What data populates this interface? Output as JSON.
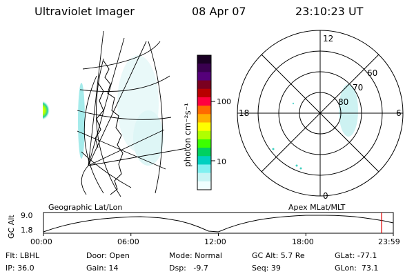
{
  "header": {
    "instrument": "Ultraviolet Imager",
    "date": "08 Apr 07",
    "time": "23:10:23 UT"
  },
  "colorbar": {
    "unit_label": "photon cm⁻²s⁻¹",
    "tick_labels": [
      "100",
      "10"
    ],
    "colors": [
      "#1a0024",
      "#3a0050",
      "#55007a",
      "#7a0020",
      "#b80000",
      "#ff0040",
      "#ff6a00",
      "#ffb000",
      "#ffff00",
      "#b0ff00",
      "#3cff00",
      "#00d060",
      "#00d0c0",
      "#80f0f0",
      "#c8f4f4",
      "#f0ffff"
    ]
  },
  "polar_plot": {
    "mlt_labels": {
      "top": "12",
      "left": "18",
      "right": "6",
      "bottom": "0"
    },
    "lat_labels": [
      "60",
      "70",
      "80"
    ]
  },
  "altitude_panel": {
    "left_label": "Geographic Lat/Lon",
    "right_label": "Apex MLat/MLT",
    "y_axis_label": "GC Alt",
    "y_ticks": [
      "9.0",
      "1.8"
    ],
    "x_ticks": [
      "00:00",
      "06:00",
      "12:00",
      "18:00",
      "23:59"
    ],
    "orbit_alt": [
      1.8,
      3.2,
      4.4,
      5.4,
      6.2,
      6.9,
      7.4,
      7.8,
      8.1,
      8.3,
      8.4,
      8.2,
      7.9,
      7.3,
      6.5,
      5.4,
      3.9,
      2.1,
      1.8,
      3.5,
      4.9,
      6.0,
      6.9,
      7.6,
      8.1,
      8.5,
      8.8,
      9.0,
      9.0,
      9.0,
      8.9,
      8.7,
      8.4,
      7.9,
      7.3,
      6.6,
      5.7
    ],
    "current_time_marker_color": "#dd0000"
  },
  "info": {
    "filter": "Flt: LBHL",
    "ip": "IP: 36.0",
    "door": "Door: Open",
    "gain": "Gain: 14",
    "mode": "Mode: Normal",
    "dsp": "Dsp:   -9.7",
    "gc_alt": "GC Alt: 5.7 Re",
    "seq": "Seq: 39",
    "glat": "GLat: -77.1",
    "glon": "GLon:  73.1"
  }
}
